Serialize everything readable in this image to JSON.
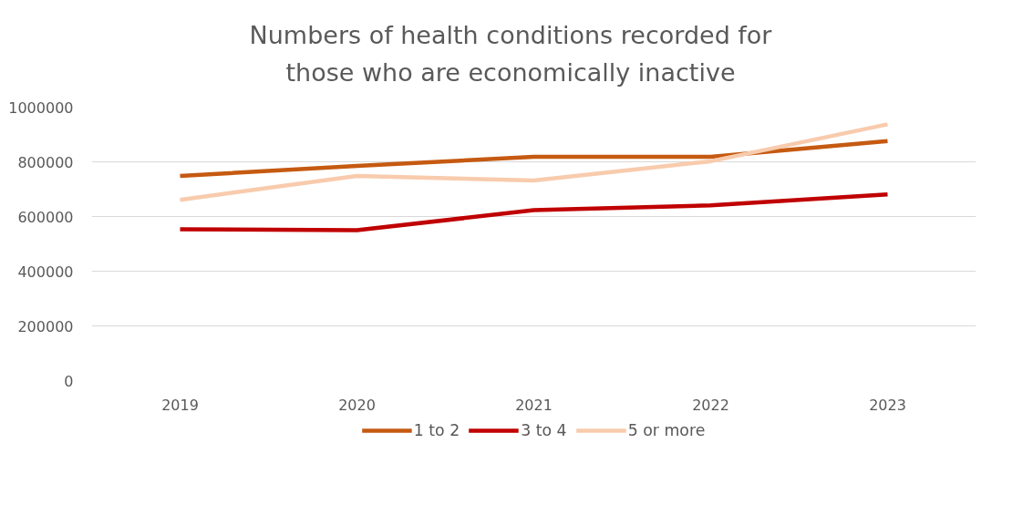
{
  "chart_data": {
    "type": "line",
    "title": "Numbers of health conditions recorded for those who are economically inactive",
    "categories": [
      "2019",
      "2020",
      "2021",
      "2022",
      "2023"
    ],
    "series": [
      {
        "name": "1 to 2",
        "color": "#c55a11",
        "values": [
          748000,
          785000,
          818000,
          818000,
          876000
        ]
      },
      {
        "name": "3 to 4",
        "color": "#c00000",
        "values": [
          553000,
          550000,
          623000,
          641000,
          681000
        ]
      },
      {
        "name": "5 or more",
        "color": "#f8cbad",
        "values": [
          661000,
          748000,
          732000,
          802000,
          937000
        ]
      }
    ],
    "ylim": [
      0,
      1000000
    ],
    "yticks": [
      0,
      200000,
      400000,
      600000,
      800000,
      1000000
    ],
    "grid": "y",
    "legend": "bottom",
    "marker": "none",
    "line_style": "solid"
  }
}
